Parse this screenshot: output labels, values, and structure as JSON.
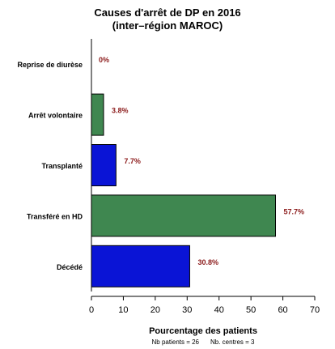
{
  "chart_data": {
    "type": "bar",
    "orientation": "horizontal",
    "title": "Causes d'arrêt de DP en 2016",
    "subtitle": "(inter–région MAROC)",
    "xlabel": "Pourcentage des patients",
    "ylabel": "",
    "categories": [
      "Reprise de diurèse",
      "Arrêt volontaire",
      "Transplanté",
      "Transféré en HD",
      "Décédé"
    ],
    "values": [
      0,
      3.8,
      7.7,
      57.7,
      30.8
    ],
    "value_labels": [
      "0%",
      "3.8%",
      "7.7%",
      "57.7%",
      "30.8%"
    ],
    "bar_colors": [
      "#3f8750",
      "#3f8750",
      "#0a14d6",
      "#3f8750",
      "#0a14d6"
    ],
    "label_color": "#8b1a1a",
    "xlim": [
      0,
      70
    ],
    "xticks": [
      0,
      10,
      20,
      30,
      40,
      50,
      60,
      70
    ],
    "grid": false,
    "footnote": {
      "patients": "Nb patients = 26",
      "centres": "Nb. centres = 3"
    }
  }
}
